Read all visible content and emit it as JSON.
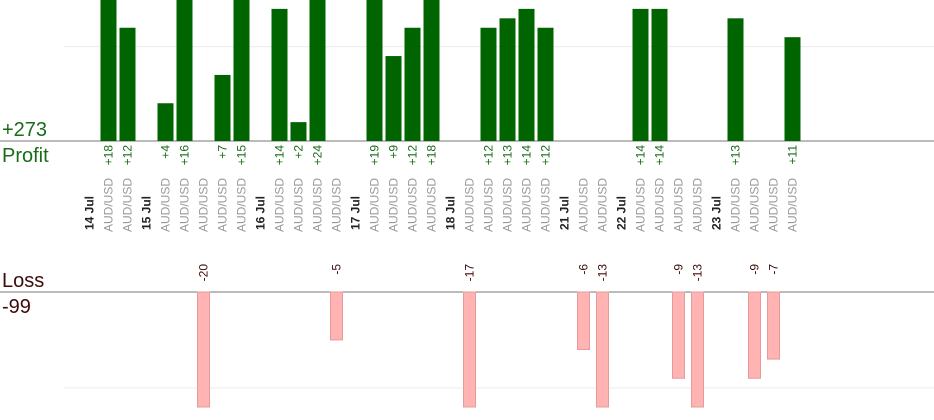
{
  "summary": {
    "profit_total": "+273",
    "profit_label": "Profit",
    "loss_label": "Loss",
    "loss_total": "-99"
  },
  "colors": {
    "profit_bar": "#006400",
    "loss_bar": "#ffb3b3",
    "profit_text": "#1a6b1a",
    "loss_text": "#3d0b0b",
    "date_text": "#222222",
    "pair_text": "#999999"
  },
  "chart_data": {
    "type": "bar",
    "title": "",
    "xlabel": "",
    "ylabel": "",
    "profit_ylim": [
      0,
      16
    ],
    "loss_ylim": [
      0,
      12
    ],
    "columns": [
      {
        "date": "14 Jul"
      },
      {
        "pair": "AUD/USD",
        "value": 18
      },
      {
        "pair": "AUD/USD",
        "value": 12
      },
      {
        "date": "15 Jul"
      },
      {
        "pair": "AUD/USD",
        "value": 4
      },
      {
        "pair": "AUD/USD",
        "value": 16
      },
      {
        "pair": "AUD/USD",
        "value": -20
      },
      {
        "pair": "AUD/USD",
        "value": 7
      },
      {
        "pair": "AUD/USD",
        "value": 15
      },
      {
        "date": "16 Jul"
      },
      {
        "pair": "AUD/USD",
        "value": 14
      },
      {
        "pair": "AUD/USD",
        "value": 2
      },
      {
        "pair": "AUD/USD",
        "value": 24
      },
      {
        "pair": "AUD/USD",
        "value": -5
      },
      {
        "date": "17 Jul"
      },
      {
        "pair": "AUD/USD",
        "value": 19
      },
      {
        "pair": "AUD/USD",
        "value": 9
      },
      {
        "pair": "AUD/USD",
        "value": 12
      },
      {
        "pair": "AUD/USD",
        "value": 18
      },
      {
        "date": "18 Jul"
      },
      {
        "pair": "AUD/USD",
        "value": -17
      },
      {
        "pair": "AUD/USD",
        "value": 12
      },
      {
        "pair": "AUD/USD",
        "value": 13
      },
      {
        "pair": "AUD/USD",
        "value": 14
      },
      {
        "pair": "AUD/USD",
        "value": 12
      },
      {
        "date": "21 Jul"
      },
      {
        "pair": "AUD/USD",
        "value": -6
      },
      {
        "pair": "AUD/USD",
        "value": -13
      },
      {
        "date": "22 Jul"
      },
      {
        "pair": "AUD/USD",
        "value": 14
      },
      {
        "pair": "AUD/USD",
        "value": 14
      },
      {
        "pair": "AUD/USD",
        "value": -9
      },
      {
        "pair": "AUD/USD",
        "value": -13
      },
      {
        "date": "23 Jul"
      },
      {
        "pair": "AUD/USD",
        "value": 13
      },
      {
        "pair": "AUD/USD",
        "value": -9
      },
      {
        "pair": "AUD/USD",
        "value": -7
      },
      {
        "pair": "AUD/USD",
        "value": 11
      }
    ]
  }
}
